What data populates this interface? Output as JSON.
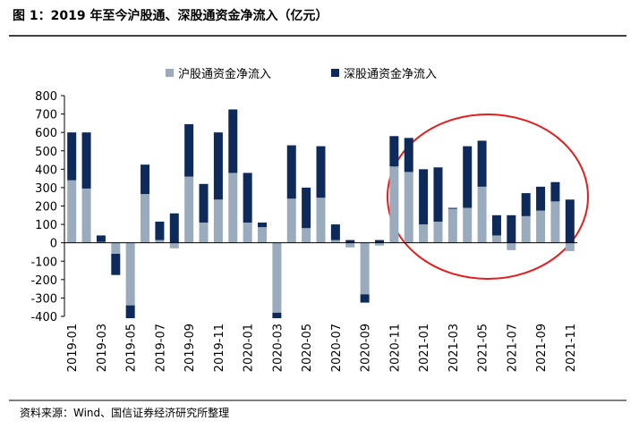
{
  "chart_data": {
    "type": "bar",
    "stacked": true,
    "title": "图 1：2019 年至今沪股通、深股通资金净流入（亿元）",
    "source": "资料来源：Wind、国信证券经济研究所整理",
    "categories": [
      "2019-01",
      null,
      "2019-03",
      null,
      "2019-05",
      null,
      "2019-07",
      null,
      "2019-09",
      null,
      "2019-11",
      null,
      "2020-01",
      null,
      "2020-03",
      null,
      "2020-05",
      null,
      "2020-07",
      null,
      "2020-09",
      null,
      "2020-11",
      null,
      "2021-01",
      null,
      "2021-03",
      null,
      "2021-05",
      null,
      "2021-07",
      null,
      "2021-09",
      null,
      "2021-11"
    ],
    "series": [
      {
        "name": "沪股通资金净流入",
        "color": "#9aabbd",
        "values": [
          340,
          295,
          5,
          -60,
          -340,
          265,
          15,
          -30,
          360,
          110,
          235,
          380,
          110,
          85,
          -380,
          240,
          80,
          245,
          15,
          -25,
          -280,
          -15,
          415,
          385,
          100,
          115,
          185,
          190,
          305,
          40,
          -40,
          145,
          175,
          225,
          -45
        ]
      },
      {
        "name": "深股通资金净流入",
        "color": "#0d2a5a",
        "values": [
          260,
          305,
          35,
          -115,
          -70,
          160,
          100,
          160,
          285,
          210,
          365,
          345,
          270,
          25,
          -30,
          290,
          220,
          280,
          85,
          15,
          -45,
          15,
          165,
          185,
          300,
          295,
          5,
          335,
          250,
          110,
          150,
          125,
          130,
          105,
          235
        ]
      }
    ],
    "ylim": [
      -400,
      800
    ],
    "yticks": [
      -400,
      -300,
      -200,
      -100,
      0,
      100,
      200,
      300,
      400,
      500,
      600,
      700,
      800
    ]
  }
}
